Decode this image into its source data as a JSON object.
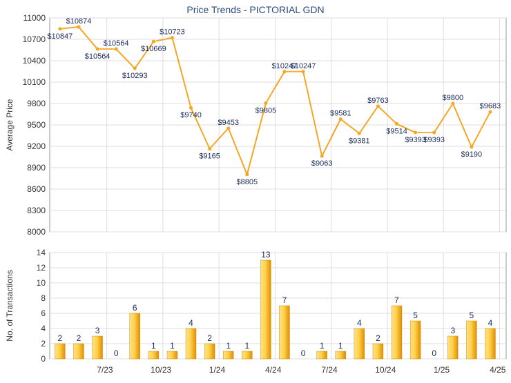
{
  "title": "Price Trends - PICTORIAL GDN",
  "colors": {
    "line": "#f5a623",
    "bar_light": "#ffd966",
    "bar_dark": "#e69500",
    "grid": "#dddddd",
    "axis_text": "#333333",
    "label_text": "#1a2a5a",
    "title": "#2a4a80"
  },
  "chart_data": [
    {
      "type": "line",
      "title": "Price Trends - PICTORIAL GDN",
      "ylabel": "Average Price",
      "xlabel": "",
      "ylim": [
        8000,
        11000
      ],
      "yticks": [
        "8000",
        "8300",
        "8600",
        "8900",
        "9200",
        "9500",
        "9800",
        "10100",
        "10400",
        "10700",
        "11000"
      ],
      "grid": true,
      "series": [
        {
          "values": [
            10847,
            10874,
            10564,
            10564,
            10293,
            10669,
            10723,
            9740,
            9165,
            9453,
            8805,
            9805,
            10247,
            10247,
            9063,
            9581,
            9381,
            9763,
            9514,
            9393,
            9393,
            9800,
            9190,
            9683
          ],
          "labels": [
            "$10847",
            "$10874",
            "$10564",
            "$10564",
            "$10293",
            "$10669",
            "$10723",
            "$9740",
            "$9165",
            "$9453",
            "$8805",
            "$9805",
            "$10247",
            "$10247",
            "$9063",
            "$9581",
            "$9381",
            "$9763",
            "$9514",
            "$9393",
            "$9393",
            "$9800",
            "$9190",
            "$9683"
          ],
          "dotted_segments_after": [
            2,
            12,
            19
          ]
        }
      ]
    },
    {
      "type": "bar",
      "ylabel": "No. of Transactions",
      "xlabel": "",
      "ylim": [
        0,
        14
      ],
      "yticks": [
        "0",
        "2",
        "4",
        "6",
        "8",
        "10",
        "12",
        "14"
      ],
      "grid": true,
      "values": [
        2,
        2,
        3,
        0,
        6,
        1,
        1,
        4,
        2,
        1,
        1,
        13,
        7,
        0,
        1,
        1,
        4,
        2,
        7,
        5,
        0,
        3,
        5,
        4
      ],
      "value_labels": [
        "2",
        "2",
        "3",
        "0",
        "6",
        "1",
        "1",
        "4",
        "2",
        "1",
        "1",
        "13",
        "7",
        "0",
        "1",
        "1",
        "4",
        "2",
        "7",
        "5",
        "0",
        "3",
        "5",
        "4"
      ],
      "x_tick_labels": [
        {
          "after_index": 2,
          "label": "7/23"
        },
        {
          "after_index": 5,
          "label": "10/23"
        },
        {
          "after_index": 8,
          "label": "1/24"
        },
        {
          "after_index": 11,
          "label": "4/24"
        },
        {
          "after_index": 14,
          "label": "7/24"
        },
        {
          "after_index": 17,
          "label": "10/24"
        },
        {
          "after_index": 20,
          "label": "1/25"
        },
        {
          "after_index": 23,
          "label": "4/25"
        }
      ]
    }
  ]
}
